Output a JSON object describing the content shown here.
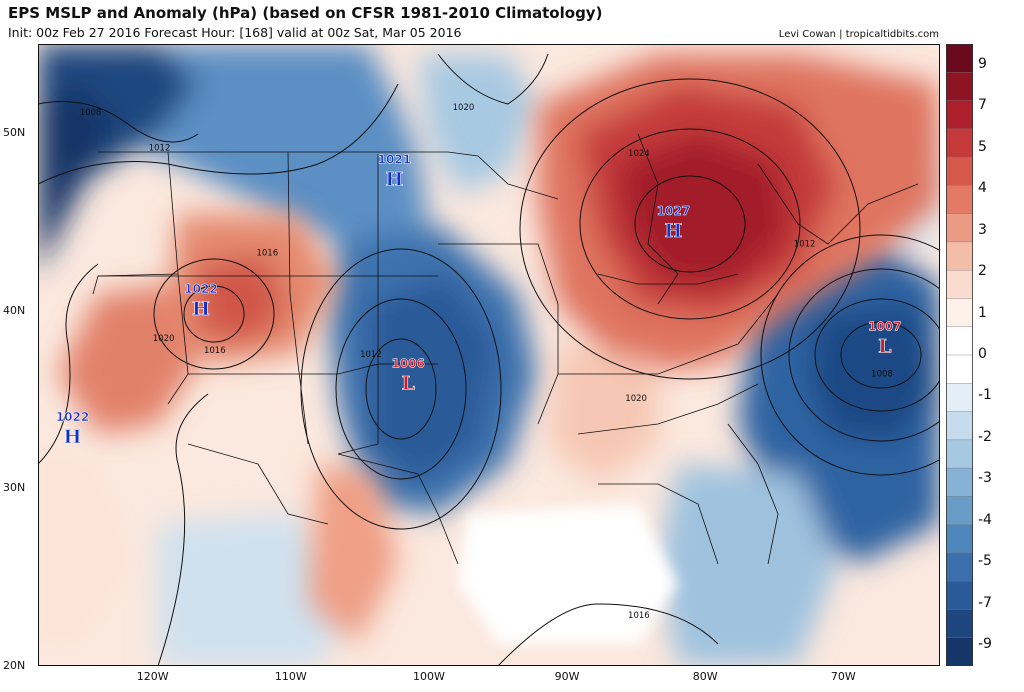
{
  "header": {
    "title": "EPS MSLP and Anomaly (hPa) (based on CFSR 1981-2010 Climatology)",
    "subtitle": "Init: 00z Feb 27 2016   Forecast Hour: [168]   valid at 00z Sat, Mar 05 2016",
    "credit": "Levi Cowan | tropicaltidbits.com"
  },
  "map": {
    "lat_ticks": [
      "50N",
      "40N",
      "30N",
      "20N"
    ],
    "lon_ticks": [
      "120W",
      "110W",
      "100W",
      "90W",
      "80W",
      "70W"
    ],
    "pressure_centers": [
      {
        "type": "H",
        "value": "1021",
        "lon": -102.5,
        "lat": 47.5,
        "color": "blue"
      },
      {
        "type": "H",
        "value": "1022",
        "lon": -116.5,
        "lat": 40.2,
        "color": "blue"
      },
      {
        "type": "H",
        "value": "1022",
        "lon": -125.8,
        "lat": 33.0,
        "color": "blue"
      },
      {
        "type": "H",
        "value": "1027",
        "lon": -82.3,
        "lat": 44.6,
        "color": "blue"
      },
      {
        "type": "L",
        "value": "1006",
        "lon": -101.5,
        "lat": 36.0,
        "color": "red"
      },
      {
        "type": "L",
        "value": "1007",
        "lon": -67.0,
        "lat": 38.1,
        "color": "red"
      }
    ],
    "isobar_labels": [
      {
        "text": "1008",
        "lon": -124.5,
        "lat": 51.0
      },
      {
        "text": "1012",
        "lon": -119.5,
        "lat": 49.0
      },
      {
        "text": "1016",
        "lon": -111.7,
        "lat": 43.1
      },
      {
        "text": "1020",
        "lon": -119.2,
        "lat": 38.3
      },
      {
        "text": "1016",
        "lon": -115.5,
        "lat": 37.6
      },
      {
        "text": "1012",
        "lon": -104.2,
        "lat": 37.4
      },
      {
        "text": "1020",
        "lon": -97.5,
        "lat": 51.3
      },
      {
        "text": "1024",
        "lon": -84.8,
        "lat": 48.7
      },
      {
        "text": "1020",
        "lon": -85.0,
        "lat": 34.9
      },
      {
        "text": "1016",
        "lon": -84.8,
        "lat": 22.7
      },
      {
        "text": "1012",
        "lon": -72.8,
        "lat": 43.6
      },
      {
        "text": "1008",
        "lon": -67.2,
        "lat": 36.3
      }
    ]
  },
  "colorbar": {
    "labels": [
      "9",
      "7",
      "5",
      "4",
      "3",
      "2",
      "1",
      "0",
      "-1",
      "-2",
      "-3",
      "-4",
      "-5",
      "-7",
      "-9"
    ],
    "colors": [
      "#6b0a1c",
      "#8f1423",
      "#ad1f2b",
      "#c5393a",
      "#d6594c",
      "#e27a65",
      "#eb9b83",
      "#f3bda8",
      "#f9dccf",
      "#fdf1ea",
      "#ffffff",
      "#ffffff",
      "#e3eef6",
      "#c6dcec",
      "#a6c8e1",
      "#86b2d5",
      "#6a9cc8",
      "#4f86bb",
      "#3a6fac",
      "#2a5a98",
      "#1d467f",
      "#143668"
    ]
  }
}
